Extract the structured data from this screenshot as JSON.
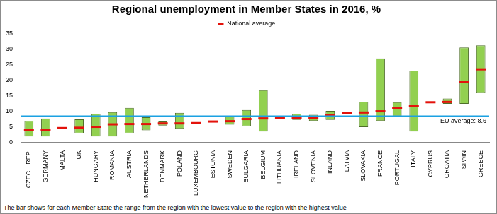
{
  "chart_data": {
    "type": "bar",
    "title": "Regional unemployment in Member States in 2016, %",
    "footnote": "The bar shows for each Member State the range from the region with the lowest value to the region with the highest value",
    "categories": [
      "CZECH REP.",
      "GERMANY",
      "MALTA",
      "UK",
      "HUNGARY",
      "ROMANIA",
      "AUSTRIA",
      "NETHERLANDS",
      "DENMARK",
      "POLAND",
      "LUXEMBOURG",
      "ESTONIA",
      "SWEDEN",
      "BULGARIA",
      "BELGIUM",
      "LITHUANIA",
      "IRELAND",
      "SLOVENIA",
      "FINLAND",
      "LATVIA",
      "SLOVAKIA",
      "FRANCE",
      "PORTUGAL",
      "ITALY",
      "CYPRUS",
      "CROATIA",
      "SPAIN",
      "GREECE"
    ],
    "series": [
      {
        "type": "bar",
        "color": "#92d050",
        "values": [
          [
            2.0,
            7.0
          ],
          [
            2.0,
            7.8
          ],
          null,
          [
            3.0,
            7.5
          ],
          [
            2.0,
            9.3
          ],
          [
            2.0,
            9.8
          ],
          [
            3.0,
            11.2
          ],
          [
            4.0,
            8.2
          ],
          [
            5.5,
            6.8
          ],
          [
            4.5,
            9.6
          ],
          null,
          null,
          [
            5.8,
            8.5
          ],
          [
            5.3,
            10.5
          ],
          [
            3.6,
            16.9
          ],
          null,
          [
            7.3,
            9.3
          ],
          [
            7.0,
            9.0
          ],
          [
            7.3,
            10.2
          ],
          null,
          [
            5.0,
            13.2
          ],
          [
            7.0,
            27.1
          ],
          [
            8.5,
            13.0
          ],
          [
            3.6,
            23.2
          ],
          null,
          [
            12.5,
            14.2
          ],
          [
            12.5,
            30.6
          ],
          [
            16.0,
            31.3
          ]
        ]
      },
      {
        "name": "National average",
        "type": "line",
        "marker": "line",
        "color": "#e3120b",
        "values": [
          4.0,
          4.1,
          4.7,
          4.8,
          5.1,
          5.9,
          6.0,
          6.0,
          6.2,
          6.2,
          6.3,
          6.8,
          6.9,
          7.6,
          7.8,
          7.9,
          7.9,
          8.0,
          8.8,
          9.6,
          9.7,
          10.1,
          11.2,
          11.7,
          13.0,
          13.1,
          19.6,
          23.6
        ]
      }
    ],
    "annotations": [
      {
        "text": "EU average: 8.6",
        "y": 8.6,
        "color": "#1ba1e2"
      }
    ],
    "ylim": [
      0,
      35
    ],
    "yticks": [
      0,
      5,
      10,
      15,
      20,
      25,
      30,
      35
    ],
    "grid": false,
    "legend": "top"
  }
}
